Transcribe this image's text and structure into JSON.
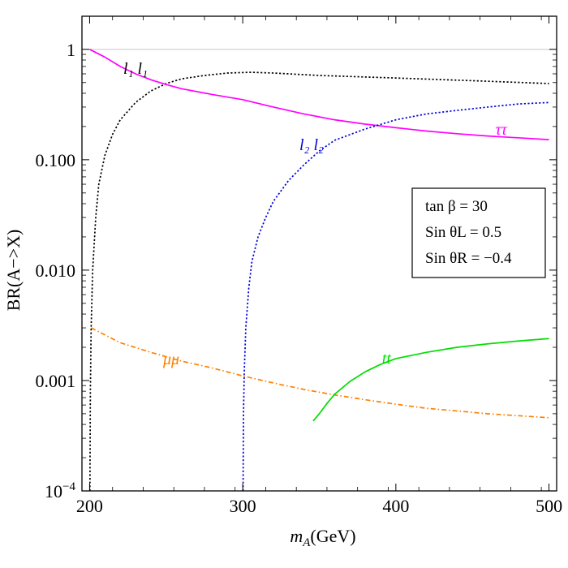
{
  "chart_data": {
    "type": "line",
    "title": "",
    "xlabel_main": "m",
    "xlabel_sub": "A",
    "xlabel_unit": "(GeV)",
    "ylabel": "BR(A−>X)",
    "xlim": [
      195,
      505
    ],
    "ylim_log10": [
      -4,
      0.3
    ],
    "xscale": "linear",
    "yscale": "log",
    "x_ticks": [
      {
        "value": 200,
        "label": "200"
      },
      {
        "value": 300,
        "label": "300"
      },
      {
        "value": 400,
        "label": "400"
      },
      {
        "value": 500,
        "label": "500"
      }
    ],
    "y_ticks": [
      {
        "value": 1,
        "label": "1"
      },
      {
        "value": 0.1,
        "label": "0.100"
      },
      {
        "value": 0.01,
        "label": "0.010"
      },
      {
        "value": 0.001,
        "label": "0.001"
      },
      {
        "value": 0.0001,
        "label_base": "10",
        "label_exp": "−4"
      }
    ],
    "reference_line_y": 1,
    "series": [
      {
        "name": "l1 l1",
        "label": "l₁ l₁",
        "color": "#000000",
        "dash": "dotted",
        "points": [
          [
            200.2,
            0.0001
          ],
          [
            200.5,
            0.0008
          ],
          [
            201,
            0.003
          ],
          [
            202,
            0.01
          ],
          [
            204,
            0.03
          ],
          [
            206,
            0.06
          ],
          [
            210,
            0.11
          ],
          [
            215,
            0.17
          ],
          [
            220,
            0.23
          ],
          [
            230,
            0.33
          ],
          [
            240,
            0.42
          ],
          [
            250,
            0.49
          ],
          [
            260,
            0.54
          ],
          [
            275,
            0.58
          ],
          [
            290,
            0.61
          ],
          [
            305,
            0.62
          ],
          [
            320,
            0.61
          ],
          [
            350,
            0.58
          ],
          [
            400,
            0.55
          ],
          [
            450,
            0.52
          ],
          [
            500,
            0.49
          ]
        ]
      },
      {
        "name": "tau tau",
        "label": "ττ",
        "color": "#ff00ff",
        "dash": "solid",
        "points": [
          [
            200,
            1.0
          ],
          [
            210,
            0.85
          ],
          [
            220,
            0.7
          ],
          [
            230,
            0.6
          ],
          [
            240,
            0.53
          ],
          [
            250,
            0.48
          ],
          [
            260,
            0.44
          ],
          [
            280,
            0.39
          ],
          [
            300,
            0.35
          ],
          [
            320,
            0.3
          ],
          [
            340,
            0.26
          ],
          [
            360,
            0.23
          ],
          [
            380,
            0.21
          ],
          [
            400,
            0.195
          ],
          [
            420,
            0.182
          ],
          [
            440,
            0.172
          ],
          [
            460,
            0.164
          ],
          [
            480,
            0.158
          ],
          [
            500,
            0.152
          ]
        ]
      },
      {
        "name": "l2 l2",
        "label": "l₂ l₂",
        "color": "#0000dd",
        "dash": "dotted",
        "points": [
          [
            300.2,
            0.0001
          ],
          [
            300.5,
            0.0005
          ],
          [
            301,
            0.0012
          ],
          [
            302,
            0.003
          ],
          [
            304,
            0.007
          ],
          [
            306,
            0.012
          ],
          [
            310,
            0.02
          ],
          [
            315,
            0.03
          ],
          [
            320,
            0.042
          ],
          [
            330,
            0.065
          ],
          [
            340,
            0.09
          ],
          [
            350,
            0.12
          ],
          [
            360,
            0.15
          ],
          [
            380,
            0.19
          ],
          [
            400,
            0.23
          ],
          [
            420,
            0.26
          ],
          [
            440,
            0.28
          ],
          [
            460,
            0.3
          ],
          [
            480,
            0.32
          ],
          [
            500,
            0.33
          ]
        ]
      },
      {
        "name": "mu mu",
        "label": "μμ",
        "color": "#ff8000",
        "dash": "dashdot",
        "points": [
          [
            201,
            0.003
          ],
          [
            220,
            0.0022
          ],
          [
            240,
            0.0018
          ],
          [
            260,
            0.0015
          ],
          [
            280,
            0.0013
          ],
          [
            300,
            0.0011
          ],
          [
            320,
            0.00095
          ],
          [
            340,
            0.00083
          ],
          [
            360,
            0.00074
          ],
          [
            380,
            0.00067
          ],
          [
            400,
            0.00061
          ],
          [
            420,
            0.00056
          ],
          [
            440,
            0.00053
          ],
          [
            460,
            0.0005
          ],
          [
            480,
            0.00048
          ],
          [
            500,
            0.00046
          ]
        ]
      },
      {
        "name": "t t",
        "label": "tt",
        "color": "#00dd00",
        "dash": "solid",
        "points": [
          [
            346,
            0.00043
          ],
          [
            350,
            0.0005
          ],
          [
            355,
            0.00062
          ],
          [
            360,
            0.00075
          ],
          [
            370,
            0.00098
          ],
          [
            380,
            0.0012
          ],
          [
            390,
            0.0014
          ],
          [
            400,
            0.00158
          ],
          [
            420,
            0.0018
          ],
          [
            440,
            0.002
          ],
          [
            460,
            0.00215
          ],
          [
            480,
            0.00228
          ],
          [
            500,
            0.0024
          ]
        ]
      }
    ],
    "series_label_positions": [
      {
        "series": 0,
        "x": 222,
        "y": 0.6
      },
      {
        "series": 1,
        "x": 465,
        "y": 0.168
      },
      {
        "series": 2,
        "x": 337,
        "y": 0.122
      },
      {
        "series": 3,
        "x": 248,
        "y": 0.0014
      },
      {
        "series": 4,
        "x": 391,
        "y": 0.00142
      }
    ],
    "legend": {
      "placement": "right",
      "lines": [
        "tan β = 30",
        "Sin θL = 0.5",
        "Sin θR = −0.4"
      ]
    }
  }
}
